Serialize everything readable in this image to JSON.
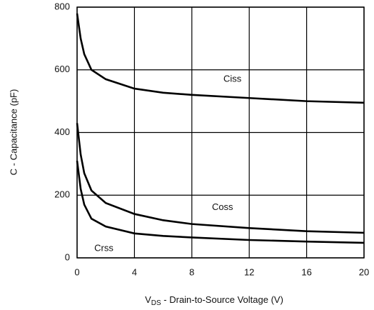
{
  "chart_data": {
    "type": "line",
    "x_label_symbol": "V",
    "x_label_subscript": "DS",
    "x_label_rest": " - Drain-to-Source Voltage (V)",
    "y_label": "C - Capacitance (pF)",
    "x": [
      0,
      0.25,
      0.5,
      1,
      2,
      4,
      6,
      8,
      12,
      16,
      20
    ],
    "series": [
      {
        "name": "Ciss",
        "color": "#000000",
        "values": [
          780,
          700,
          650,
          600,
          570,
          540,
          527,
          520,
          510,
          500,
          495
        ]
      },
      {
        "name": "Coss",
        "color": "#000000",
        "values": [
          430,
          330,
          270,
          215,
          175,
          140,
          120,
          108,
          95,
          85,
          80
        ]
      },
      {
        "name": "Crss",
        "color": "#000000",
        "values": [
          310,
          220,
          170,
          125,
          100,
          78,
          70,
          65,
          57,
          52,
          48
        ]
      }
    ],
    "xlim": [
      0,
      20
    ],
    "xticks": [
      0,
      4,
      8,
      12,
      16,
      20
    ],
    "ylim": [
      0,
      800
    ],
    "yticks": [
      0,
      200,
      400,
      600,
      800
    ],
    "grid": true
  }
}
